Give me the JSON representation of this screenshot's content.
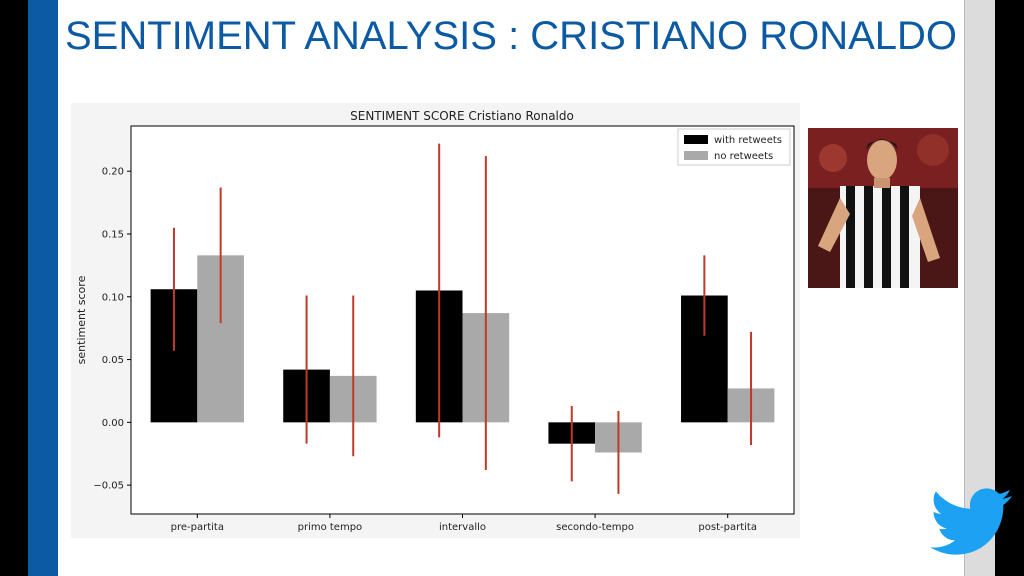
{
  "slide": {
    "title": "SENTIMENT ANALYSIS : CRISTIANO RONALDO"
  },
  "colors": {
    "accent_blue": "#0b5aa3",
    "with_retweets": "#000000",
    "no_retweets": "#a9a9a9",
    "error_bar": "#c0392b",
    "twitter_blue": "#1da1f2"
  },
  "icons": {
    "photo": "player-photo",
    "logo": "twitter-bird-icon"
  },
  "chart_data": {
    "type": "bar",
    "title": "SENTIMENT SCORE Cristiano Ronaldo",
    "xlabel": "",
    "ylabel": "sentiment score",
    "categories": [
      "pre-partita",
      "primo tempo",
      "intervallo",
      "secondo-tempo",
      "post-partita"
    ],
    "series": [
      {
        "name": "with retweets",
        "values": [
          0.106,
          0.042,
          0.105,
          -0.017,
          0.101
        ],
        "error": [
          0.049,
          0.059,
          0.117,
          0.03,
          0.032
        ]
      },
      {
        "name": "no retweets",
        "values": [
          0.133,
          0.037,
          0.087,
          -0.024,
          0.027
        ],
        "error": [
          0.054,
          0.064,
          0.125,
          0.033,
          0.045
        ]
      }
    ],
    "ylim": [
      -0.073,
      0.236
    ],
    "yticks": [
      "−0.05",
      "0.00",
      "0.05",
      "0.10",
      "0.15",
      "0.20"
    ],
    "legend_position": "top-right",
    "grid": false
  }
}
